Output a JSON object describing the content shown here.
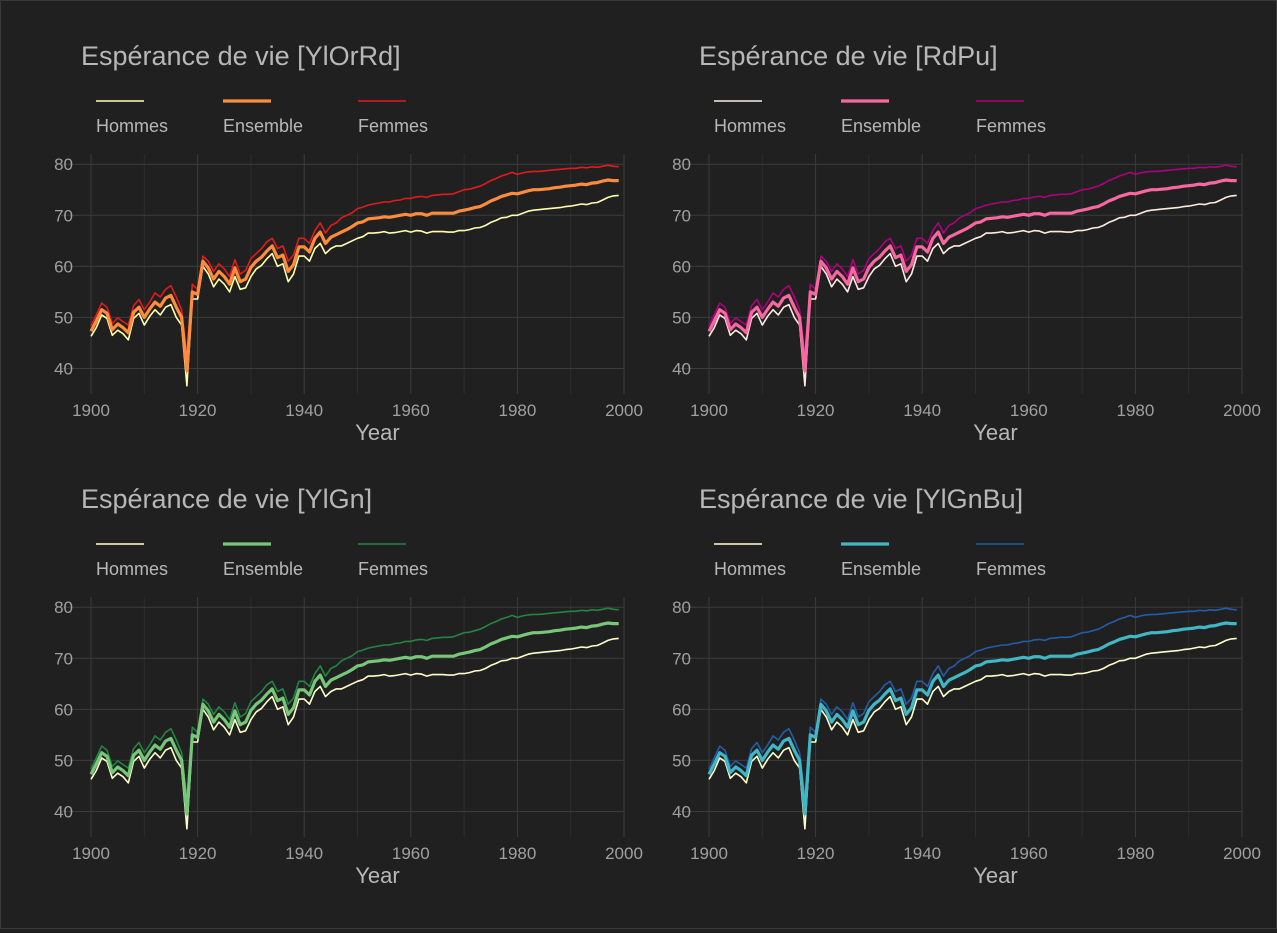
{
  "chart_data": [
    {
      "type": "line",
      "title": "Espérance de vie [YlOrRd]",
      "xlabel": "Year",
      "ylabel": "",
      "xlim": [
        1900,
        2000
      ],
      "ylim": [
        35,
        82
      ],
      "xticks": [
        "1900",
        "1920",
        "1940",
        "1960",
        "1980",
        "2000"
      ],
      "yticks": [
        "40",
        "50",
        "60",
        "70",
        "80"
      ],
      "grid": true,
      "legend_position": "top-left",
      "series": [
        {
          "name": "Hommes",
          "color": "#ffffb2"
        },
        {
          "name": "Ensemble",
          "color": "#fd8d3c"
        },
        {
          "name": "Femmes",
          "color": "#e31a1c"
        }
      ]
    },
    {
      "type": "line",
      "title": "Espérance de vie [RdPu]",
      "xlabel": "Year",
      "ylabel": "",
      "xlim": [
        1900,
        2000
      ],
      "ylim": [
        35,
        82
      ],
      "xticks": [
        "1900",
        "1920",
        "1940",
        "1960",
        "1980",
        "2000"
      ],
      "yticks": [
        "40",
        "50",
        "60",
        "70",
        "80"
      ],
      "grid": true,
      "legend_position": "top-left",
      "series": [
        {
          "name": "Hommes",
          "color": "#feebe2"
        },
        {
          "name": "Ensemble",
          "color": "#f768a1"
        },
        {
          "name": "Femmes",
          "color": "#ae017e"
        }
      ]
    },
    {
      "type": "line",
      "title": "Espérance de vie [YlGn]",
      "xlabel": "Year",
      "ylabel": "",
      "xlim": [
        1900,
        2000
      ],
      "ylim": [
        35,
        82
      ],
      "xticks": [
        "1900",
        "1920",
        "1940",
        "1960",
        "1980",
        "2000"
      ],
      "yticks": [
        "40",
        "50",
        "60",
        "70",
        "80"
      ],
      "grid": true,
      "legend_position": "top-left",
      "series": [
        {
          "name": "Hommes",
          "color": "#ffffcc"
        },
        {
          "name": "Ensemble",
          "color": "#78c679"
        },
        {
          "name": "Femmes",
          "color": "#238443"
        }
      ]
    },
    {
      "type": "line",
      "title": "Espérance de vie [YlGnBu]",
      "xlabel": "Year",
      "ylabel": "",
      "xlim": [
        1900,
        2000
      ],
      "ylim": [
        35,
        82
      ],
      "xticks": [
        "1900",
        "1920",
        "1940",
        "1960",
        "1980",
        "2000"
      ],
      "yticks": [
        "40",
        "50",
        "60",
        "70",
        "80"
      ],
      "grid": true,
      "legend_position": "top-left",
      "series": [
        {
          "name": "Hommes",
          "color": "#ffffcc"
        },
        {
          "name": "Ensemble",
          "color": "#41b6c4"
        },
        {
          "name": "Femmes",
          "color": "#225ea8"
        }
      ]
    }
  ],
  "shared_series_data": {
    "x": [
      1900,
      1901,
      1902,
      1903,
      1904,
      1905,
      1906,
      1907,
      1908,
      1909,
      1910,
      1911,
      1912,
      1913,
      1914,
      1915,
      1916,
      1917,
      1918,
      1919,
      1920,
      1921,
      1922,
      1923,
      1924,
      1925,
      1926,
      1927,
      1928,
      1929,
      1930,
      1931,
      1932,
      1933,
      1934,
      1935,
      1936,
      1937,
      1938,
      1939,
      1940,
      1941,
      1942,
      1943,
      1944,
      1945,
      1946,
      1947,
      1948,
      1949,
      1950,
      1951,
      1952,
      1953,
      1954,
      1955,
      1956,
      1957,
      1958,
      1959,
      1960,
      1961,
      1962,
      1963,
      1964,
      1965,
      1966,
      1967,
      1968,
      1969,
      1970,
      1971,
      1972,
      1973,
      1974,
      1975,
      1976,
      1977,
      1978,
      1979,
      1980,
      1981,
      1982,
      1983,
      1984,
      1985,
      1986,
      1987,
      1988,
      1989,
      1990,
      1991,
      1992,
      1993,
      1994,
      1995,
      1996,
      1997,
      1998,
      1999
    ],
    "Hommes": [
      46.3,
      48.0,
      50.5,
      49.8,
      46.5,
      47.5,
      46.8,
      45.6,
      49.8,
      50.8,
      48.5,
      50.2,
      51.5,
      50.5,
      52.0,
      52.5,
      50.0,
      48.5,
      36.6,
      53.6,
      53.6,
      60.0,
      58.5,
      56.0,
      57.5,
      56.5,
      55.0,
      58.0,
      55.5,
      55.8,
      58.0,
      59.5,
      60.2,
      61.5,
      62.5,
      60.0,
      60.5,
      57.0,
      58.5,
      62.0,
      62.0,
      61.0,
      63.5,
      64.5,
      62.5,
      63.5,
      64.0,
      64.0,
      64.5,
      65.0,
      65.5,
      65.8,
      66.5,
      66.5,
      66.6,
      66.8,
      66.5,
      66.6,
      66.8,
      67.0,
      66.7,
      67.0,
      66.9,
      66.5,
      66.8,
      66.8,
      66.8,
      66.7,
      66.7,
      67.0,
      67.0,
      67.2,
      67.5,
      67.6,
      68.0,
      68.6,
      69.0,
      69.5,
      69.6,
      70.0,
      70.0,
      70.4,
      70.8,
      71.0,
      71.1,
      71.2,
      71.3,
      71.4,
      71.5,
      71.7,
      71.8,
      72.0,
      72.2,
      72.1,
      72.4,
      72.5,
      73.0,
      73.5,
      73.8,
      73.9
    ],
    "Ensemble": [
      47.3,
      49.3,
      51.5,
      50.8,
      47.6,
      48.7,
      48.0,
      47.0,
      51.0,
      52.0,
      50.0,
      51.6,
      53.0,
      52.2,
      53.8,
      54.3,
      52.0,
      50.0,
      39.5,
      55.0,
      54.5,
      61.0,
      59.7,
      57.5,
      59.0,
      58.0,
      56.5,
      59.7,
      57.0,
      57.5,
      59.8,
      61.0,
      61.8,
      63.0,
      64.0,
      61.7,
      62.2,
      59.0,
      60.3,
      63.8,
      63.8,
      62.8,
      65.5,
      66.7,
      64.5,
      65.7,
      66.2,
      66.7,
      67.2,
      67.8,
      68.5,
      68.7,
      69.3,
      69.4,
      69.5,
      69.7,
      69.6,
      69.8,
      70.0,
      70.2,
      70.0,
      70.3,
      70.3,
      70.0,
      70.4,
      70.4,
      70.4,
      70.4,
      70.4,
      70.8,
      71.0,
      71.2,
      71.5,
      71.7,
      72.2,
      72.8,
      73.2,
      73.7,
      74.0,
      74.3,
      74.2,
      74.5,
      74.8,
      75.0,
      75.0,
      75.1,
      75.2,
      75.4,
      75.5,
      75.7,
      75.8,
      75.9,
      76.1,
      76.0,
      76.3,
      76.4,
      76.7,
      76.9,
      76.8,
      76.8
    ],
    "Femmes": [
      48.3,
      50.5,
      52.8,
      52.0,
      48.8,
      49.9,
      49.2,
      48.5,
      52.3,
      53.5,
      51.5,
      53.0,
      54.8,
      54.0,
      55.5,
      56.2,
      54.0,
      51.5,
      42.5,
      56.5,
      55.5,
      62.0,
      61.0,
      59.0,
      60.5,
      59.5,
      58.0,
      61.3,
      58.5,
      59.2,
      61.5,
      62.5,
      63.5,
      64.8,
      65.5,
      63.5,
      64.0,
      61.0,
      62.2,
      65.5,
      65.5,
      64.5,
      67.0,
      68.5,
      66.5,
      68.0,
      68.5,
      69.5,
      70.0,
      70.5,
      71.3,
      71.6,
      72.0,
      72.2,
      72.4,
      72.6,
      72.6,
      72.9,
      73.0,
      73.3,
      73.3,
      73.6,
      73.7,
      73.5,
      73.9,
      74.0,
      74.1,
      74.1,
      74.2,
      74.6,
      75.0,
      75.1,
      75.4,
      75.7,
      76.2,
      76.8,
      77.2,
      77.7,
      78.0,
      78.4,
      78.0,
      78.3,
      78.5,
      78.6,
      78.6,
      78.7,
      78.8,
      78.9,
      79.0,
      79.1,
      79.2,
      79.2,
      79.4,
      79.3,
      79.5,
      79.4,
      79.6,
      79.8,
      79.6,
      79.5
    ]
  }
}
